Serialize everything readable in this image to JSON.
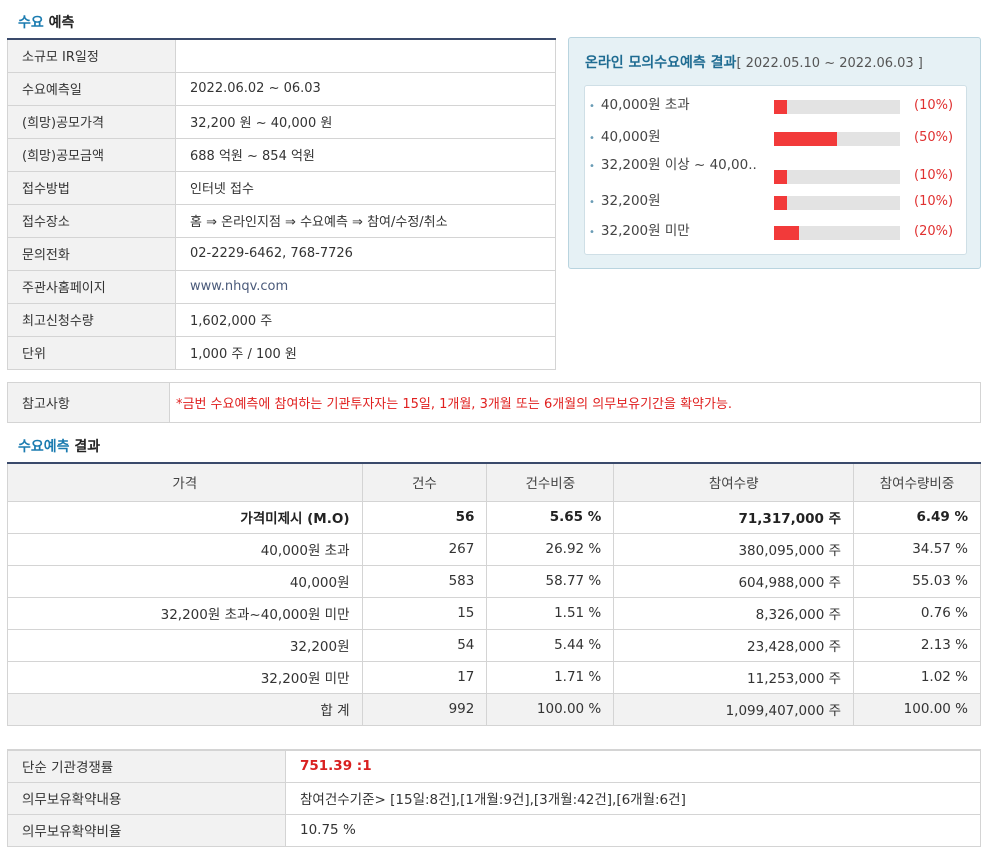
{
  "section1": {
    "title_hl": "수요",
    "title_rest": " 예측"
  },
  "info_rows": [
    {
      "label": "소규모 IR일정",
      "value": ""
    },
    {
      "label": "수요예측일",
      "value": "2022.06.02 ~ 06.03"
    },
    {
      "label": "(희망)공모가격",
      "value": "32,200 원 ~ 40,000 원"
    },
    {
      "label": "(희망)공모금액",
      "value": "688 억원 ~ 854 억원"
    },
    {
      "label": "접수방법",
      "value": "인터넷 접수"
    },
    {
      "label": "접수장소",
      "value": "홈 ⇒ 온라인지점 ⇒ 수요예측 ⇒ 참여/수정/취소"
    },
    {
      "label": "문의전화",
      "value": "02-2229-6462, 768-7726"
    },
    {
      "label": "주관사홈페이지",
      "value": "www.nhqv.com"
    },
    {
      "label": "최고신청수량",
      "value": "1,602,000 주"
    },
    {
      "label": "단위",
      "value": "1,000 주 / 100 원"
    }
  ],
  "online": {
    "title": "온라인 모의수요예측 결과",
    "period": "[ 2022.05.10 ~ 2022.06.03 ]",
    "rows": [
      {
        "label": "40,000원 초과",
        "pct": 10,
        "pct_text": "(10%)"
      },
      {
        "label": "40,000원",
        "pct": 50,
        "pct_text": "(50%)"
      },
      {
        "label": "32,200원 이상 ~ 40,00..",
        "pct": 10,
        "pct_text": "(10%)"
      },
      {
        "label": "32,200원",
        "pct": 10,
        "pct_text": "(10%)"
      },
      {
        "label": "32,200원 미만",
        "pct": 20,
        "pct_text": "(20%)"
      }
    ],
    "bar_color": "#f23a3a"
  },
  "note": {
    "label": "참고사항",
    "text": "*금번 수요예측에 참여하는 기관투자자는 15일, 1개월, 3개월 또는 6개월의 의무보유기간을 확약가능."
  },
  "section2": {
    "title_hl": "수요예측",
    "title_rest": " 결과"
  },
  "results": {
    "headers": [
      "가격",
      "건수",
      "건수비중",
      "참여수량",
      "참여수량비중"
    ],
    "rows": [
      [
        "가격미제시 (M.O)",
        "56",
        "5.65 %",
        "71,317,000 주",
        "6.49 %"
      ],
      [
        "40,000원 초과",
        "267",
        "26.92 %",
        "380,095,000 주",
        "34.57 %"
      ],
      [
        "40,000원",
        "583",
        "58.77 %",
        "604,988,000 주",
        "55.03 %"
      ],
      [
        "32,200원 초과~40,000원 미만",
        "15",
        "1.51 %",
        "8,326,000 주",
        "0.76 %"
      ],
      [
        "32,200원",
        "54",
        "5.44 %",
        "23,428,000 주",
        "2.13 %"
      ],
      [
        "32,200원 미만",
        "17",
        "1.71 %",
        "11,253,000 주",
        "1.02 %"
      ],
      [
        "합 계",
        "992",
        "100.00 %",
        "1,099,407,000 주",
        "100.00 %"
      ]
    ]
  },
  "bottom": [
    {
      "label": "단순 기관경쟁률",
      "value": "751.39 :1"
    },
    {
      "label": "의무보유확약내용",
      "value": "참여건수기준> [15일:8건],[1개월:9건],[3개월:42건],[6개월:6건]"
    },
    {
      "label": "의무보유확약비율",
      "value": "10.75 %"
    }
  ]
}
